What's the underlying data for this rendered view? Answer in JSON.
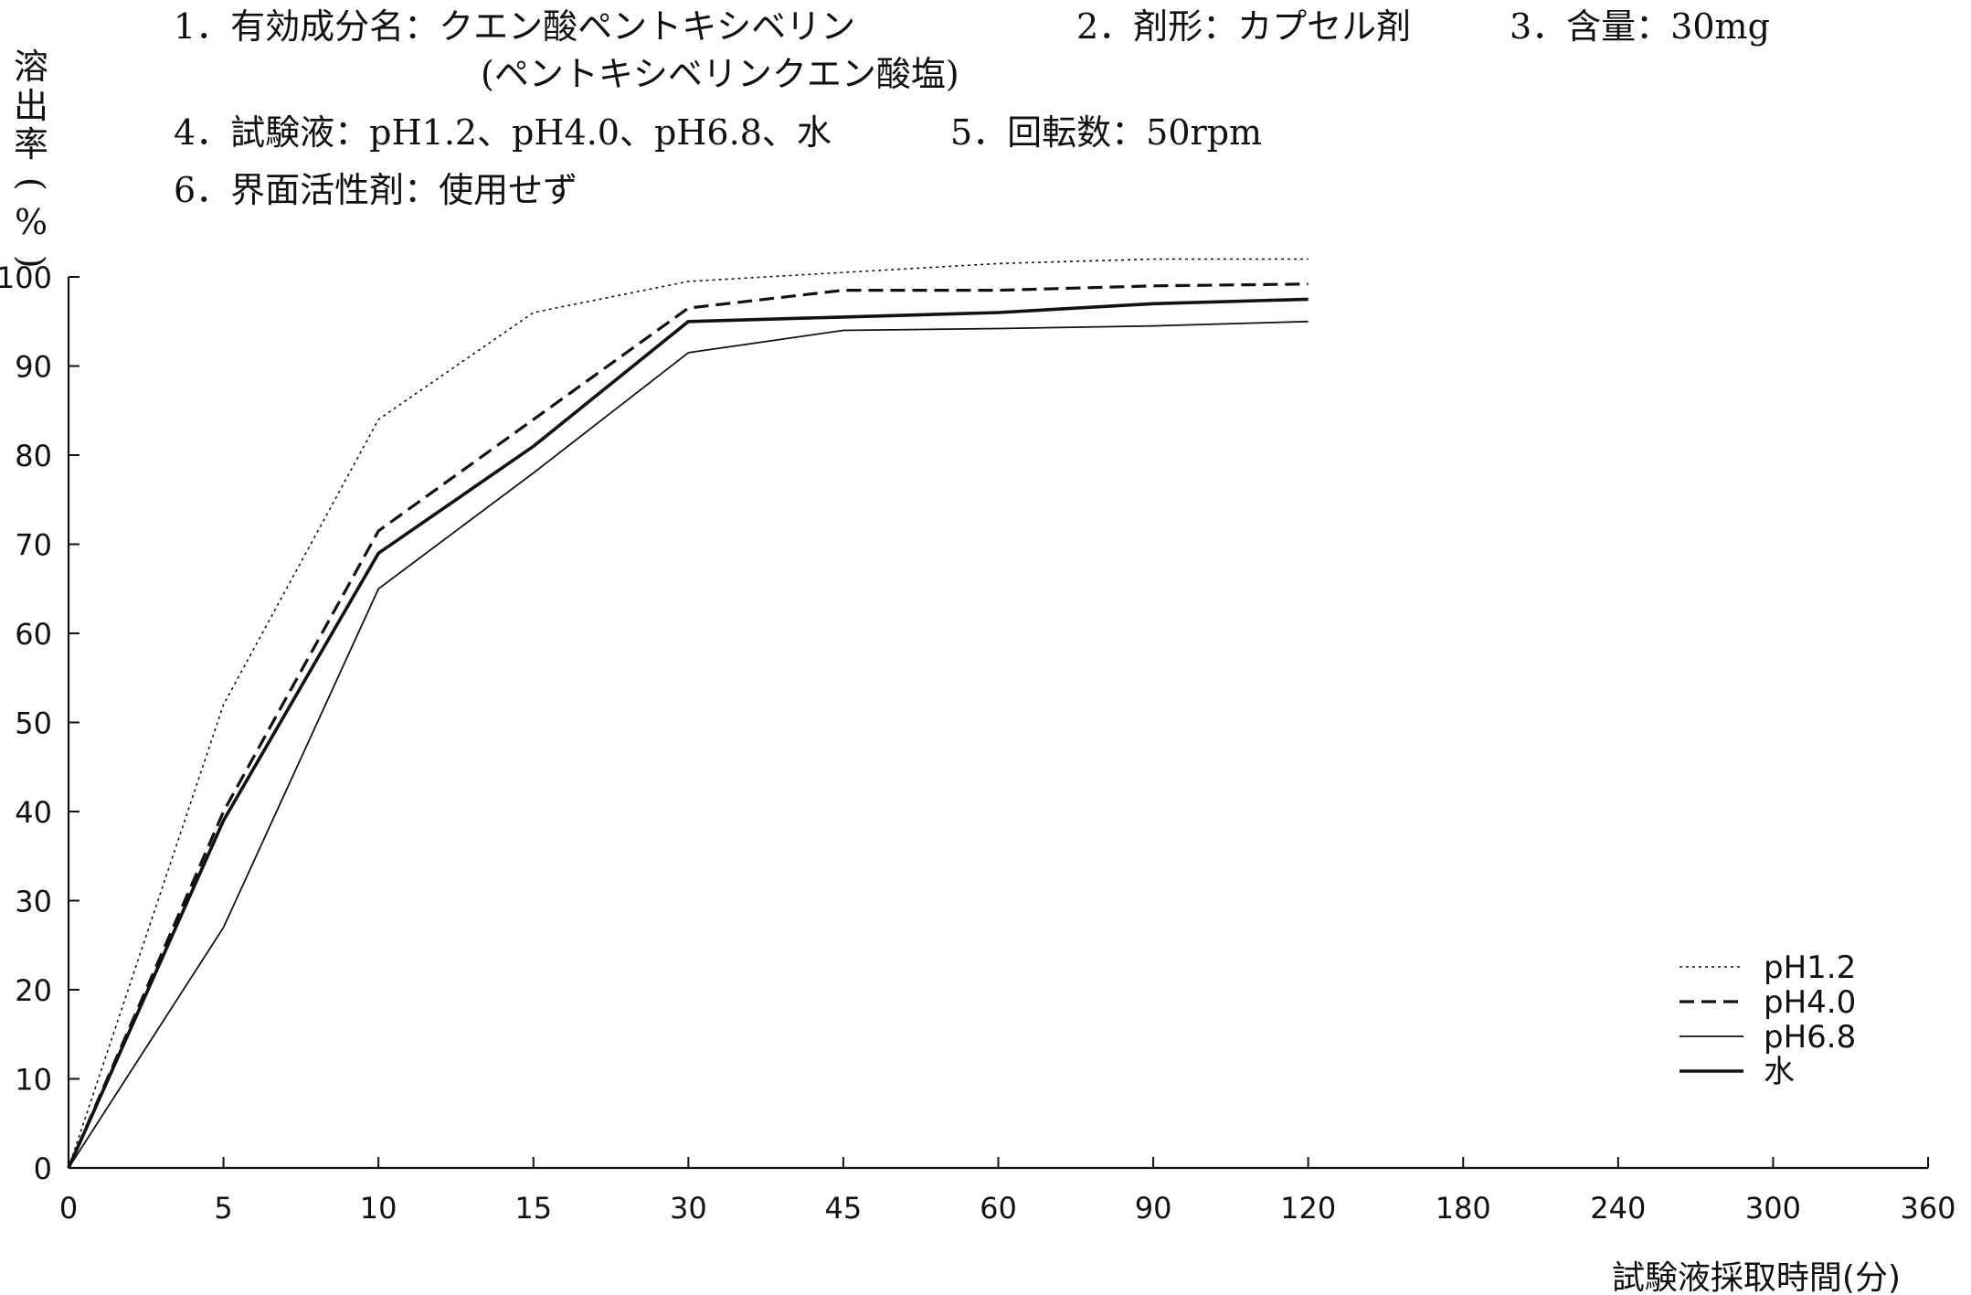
{
  "header": {
    "line1_left": "1．有効成分名：クエン酸ペントキシベリン",
    "line1_mid": "2．剤形：カプセル剤",
    "line1_right": "3．含量：30mg",
    "line2": "(ペントキシベリンクエン酸塩)",
    "line3_left": "4．試験液：pH1.2、pH4.0、pH6.8、水",
    "line3_right": "5．回転数：50rpm",
    "line4": "6．界面活性剤：使用せず"
  },
  "chart_data": {
    "type": "line",
    "title": "",
    "ylabel": "溶出率(%)",
    "xlabel": "試験液採取時間(分)",
    "x": [
      "0",
      "5",
      "10",
      "15",
      "30",
      "45",
      "60",
      "90",
      "120",
      "180",
      "240",
      "300",
      "360"
    ],
    "yticks": [
      "0",
      "10",
      "20",
      "30",
      "40",
      "50",
      "60",
      "70",
      "80",
      "90",
      "100"
    ],
    "ylim": [
      0,
      100
    ],
    "x_scale": "categorical, evenly spaced",
    "grid": false,
    "legend_position": "bottom-right",
    "series": [
      {
        "name": "pH1.2",
        "style": "dotted",
        "x": [
          "0",
          "5",
          "10",
          "15",
          "30",
          "45",
          "60",
          "90",
          "120"
        ],
        "values": [
          0,
          52,
          84,
          96,
          99.5,
          100.5,
          101.5,
          102,
          102
        ]
      },
      {
        "name": "pH4.0",
        "style": "dashed",
        "x": [
          "0",
          "5",
          "10",
          "15",
          "30",
          "45",
          "60",
          "90",
          "120"
        ],
        "values": [
          0,
          40,
          71.5,
          84,
          96.5,
          98.5,
          98.5,
          99,
          99.2
        ]
      },
      {
        "name": "pH6.8",
        "style": "thin-solid",
        "x": [
          "0",
          "5",
          "10",
          "15",
          "30",
          "45",
          "60",
          "90",
          "120"
        ],
        "values": [
          0,
          27,
          65,
          78,
          91.5,
          94,
          94.2,
          94.5,
          95
        ]
      },
      {
        "name": "水",
        "style": "solid",
        "x": [
          "0",
          "5",
          "10",
          "15",
          "30",
          "45",
          "60",
          "90",
          "120"
        ],
        "values": [
          0,
          39,
          69,
          81,
          95,
          95.5,
          96,
          97,
          97.5
        ]
      }
    ]
  }
}
